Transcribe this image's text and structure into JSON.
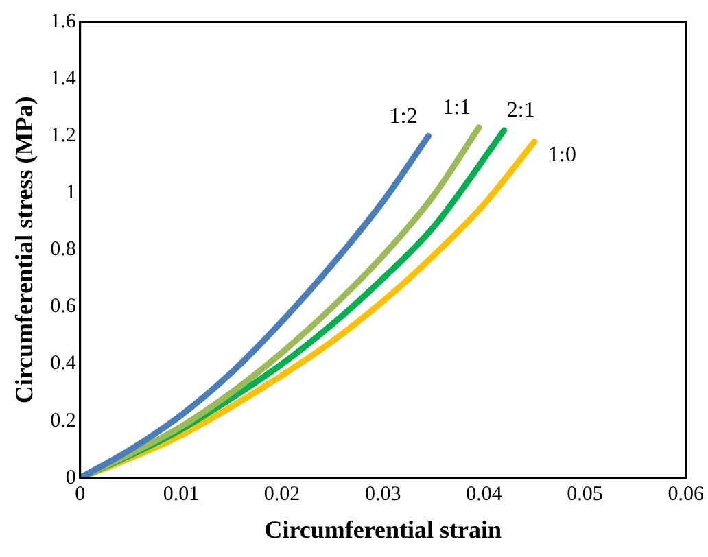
{
  "chart_data": {
    "type": "line",
    "xlabel": "Circumferential strain",
    "ylabel": "Circumferential stress (MPa)",
    "xlim": [
      0,
      0.06
    ],
    "xticks": [
      0,
      0.01,
      0.02,
      0.03,
      0.04,
      0.05,
      0.06
    ],
    "ylim": [
      0,
      1.6
    ],
    "yticks": [
      0,
      0.2,
      0.4,
      0.6,
      0.8,
      1,
      1.2,
      1.4,
      1.6
    ],
    "grid": false,
    "legend": false,
    "marker": "none",
    "line_style": "solid",
    "series": [
      {
        "name": "1:2",
        "color": "#4a7ebb",
        "x": [
          0,
          0.005,
          0.01,
          0.015,
          0.02,
          0.025,
          0.03,
          0.0345
        ],
        "values": [
          0,
          0.1,
          0.22,
          0.37,
          0.55,
          0.75,
          0.97,
          1.2
        ]
      },
      {
        "name": "1:1",
        "color": "#9bbb59",
        "x": [
          0,
          0.005,
          0.01,
          0.015,
          0.02,
          0.025,
          0.03,
          0.035,
          0.0395
        ],
        "values": [
          0,
          0.085,
          0.18,
          0.3,
          0.44,
          0.6,
          0.78,
          0.99,
          1.23
        ]
      },
      {
        "name": "2:1",
        "color": "#00b050",
        "x": [
          0,
          0.005,
          0.01,
          0.015,
          0.02,
          0.025,
          0.03,
          0.035,
          0.042
        ],
        "values": [
          0,
          0.08,
          0.17,
          0.28,
          0.4,
          0.54,
          0.7,
          0.88,
          1.22
        ]
      },
      {
        "name": "1:0",
        "color": "#ffc000",
        "x": [
          0,
          0.005,
          0.01,
          0.015,
          0.02,
          0.025,
          0.03,
          0.035,
          0.04,
          0.045
        ],
        "values": [
          0,
          0.07,
          0.15,
          0.25,
          0.36,
          0.48,
          0.62,
          0.78,
          0.96,
          1.18
        ]
      }
    ]
  }
}
